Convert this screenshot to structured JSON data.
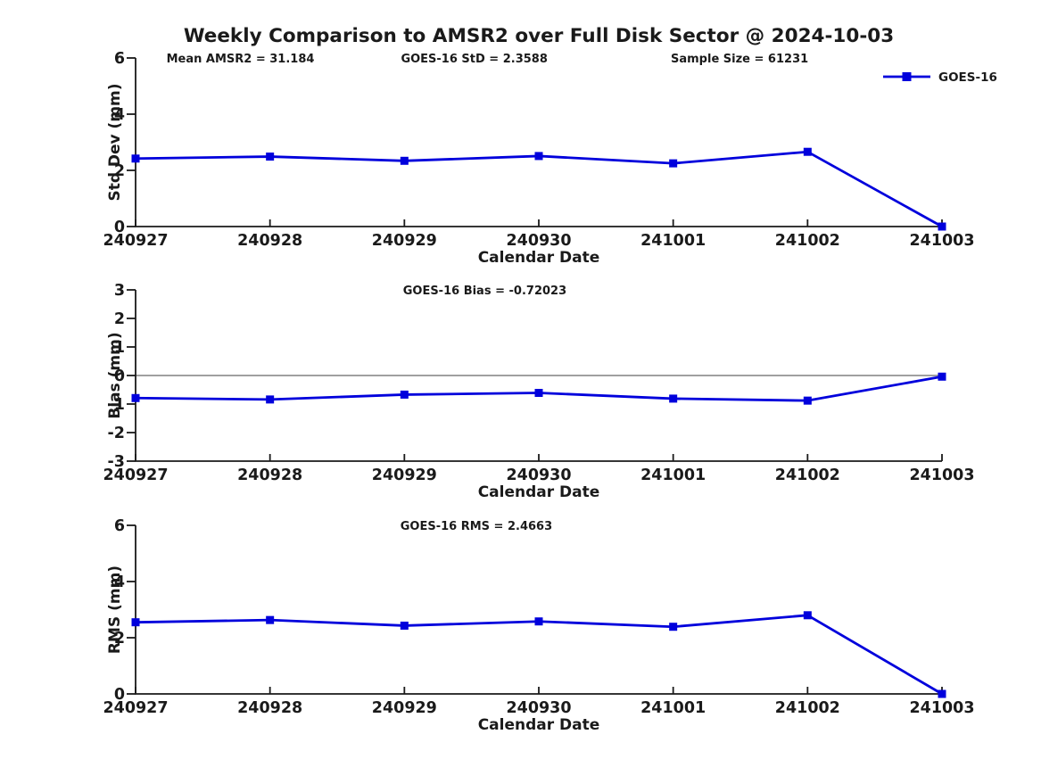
{
  "title": "Weekly Comparison to AMSR2 over Full Disk Sector @ 2024-10-03",
  "colors": {
    "series_line": "#0000dc",
    "marker_fill": "#0000dc",
    "axis": "#1a1a1a",
    "zero_line": "#808080",
    "text": "#1a1a1a",
    "background": "#ffffff"
  },
  "legend": {
    "label": "GOES-16",
    "position": "top-right",
    "marker": "filled-square"
  },
  "x_axis": {
    "label": "Calendar Date",
    "categories": [
      "240927",
      "240928",
      "240929",
      "240930",
      "241001",
      "241002",
      "241003"
    ]
  },
  "chart_data": [
    {
      "type": "line",
      "name": "std-dev",
      "ylabel": "Std Dev (mm)",
      "xlabel": "Calendar Date",
      "categories": [
        "240927",
        "240928",
        "240929",
        "240930",
        "241001",
        "241002",
        "241003"
      ],
      "series": [
        {
          "name": "GOES-16",
          "values": [
            2.42,
            2.49,
            2.34,
            2.51,
            2.25,
            2.66,
            0.0
          ]
        }
      ],
      "ylim": [
        0,
        6
      ],
      "yticks": [
        0,
        2,
        4,
        6
      ],
      "grid": false,
      "zero_line": false,
      "show_legend": true,
      "annotations": [
        "Mean AMSR2 = 31.184",
        "GOES-16 StD = 2.3588",
        "Sample Size = 61231"
      ]
    },
    {
      "type": "line",
      "name": "bias",
      "ylabel": "Bias (mm)",
      "xlabel": "Calendar Date",
      "categories": [
        "240927",
        "240928",
        "240929",
        "240930",
        "241001",
        "241002",
        "241003"
      ],
      "series": [
        {
          "name": "GOES-16",
          "values": [
            -0.79,
            -0.84,
            -0.67,
            -0.61,
            -0.81,
            -0.88,
            -0.04
          ]
        }
      ],
      "ylim": [
        -3,
        3
      ],
      "yticks": [
        -3,
        -2,
        -1,
        0,
        1,
        2,
        3
      ],
      "grid": false,
      "zero_line": true,
      "show_legend": false,
      "annotations": [
        "GOES-16 Bias  = -0.72023"
      ]
    },
    {
      "type": "line",
      "name": "rms",
      "ylabel": "RMS (mm)",
      "xlabel": "Calendar Date",
      "categories": [
        "240927",
        "240928",
        "240929",
        "240930",
        "241001",
        "241002",
        "241003"
      ],
      "series": [
        {
          "name": "GOES-16",
          "values": [
            2.55,
            2.63,
            2.43,
            2.58,
            2.39,
            2.8,
            0.0
          ]
        }
      ],
      "ylim": [
        0,
        6
      ],
      "yticks": [
        0,
        2,
        4,
        6
      ],
      "grid": false,
      "zero_line": false,
      "show_legend": false,
      "annotations": [
        "GOES-16 RMS = 2.4663"
      ]
    }
  ]
}
